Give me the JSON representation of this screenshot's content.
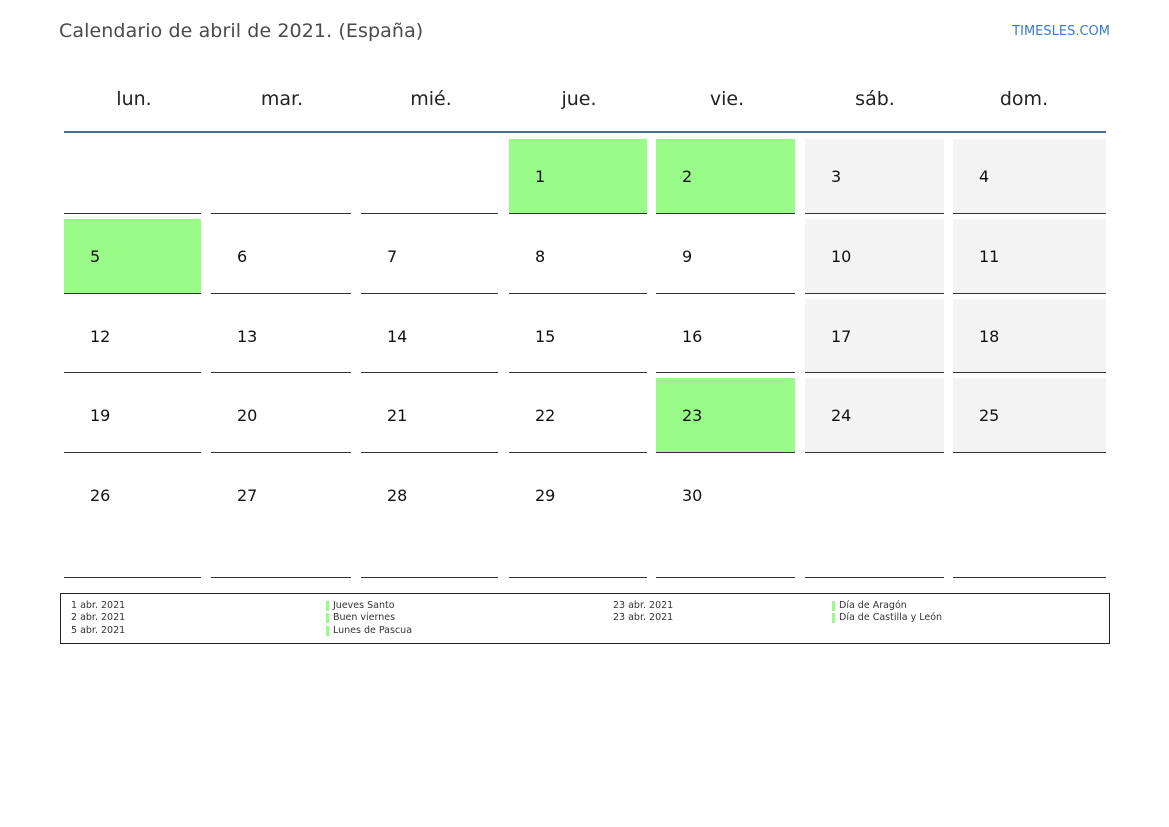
{
  "header": {
    "title": "Calendario de abril de 2021. (España)",
    "site": "TIMESLES.COM"
  },
  "calendar": {
    "weekdays": [
      "lun.",
      "mar.",
      "mié.",
      "jue.",
      "vie.",
      "sáb.",
      "dom."
    ],
    "weeks": [
      [
        "",
        "",
        "",
        "1",
        "2",
        "3",
        "4"
      ],
      [
        "5",
        "6",
        "7",
        "8",
        "9",
        "10",
        "11"
      ],
      [
        "12",
        "13",
        "14",
        "15",
        "16",
        "17",
        "18"
      ],
      [
        "19",
        "20",
        "21",
        "22",
        "23",
        "24",
        "25"
      ],
      [
        "26",
        "27",
        "28",
        "29",
        "30",
        "",
        ""
      ]
    ],
    "holiday_days": [
      "1",
      "2",
      "5",
      "23"
    ]
  },
  "legend": {
    "left": [
      {
        "date": "1 abr. 2021",
        "name": "Jueves Santo"
      },
      {
        "date": "2 abr. 2021",
        "name": "Buen viernes"
      },
      {
        "date": "5 abr. 2021",
        "name": "Lunes de Pascua"
      }
    ],
    "right": [
      {
        "date": "23 abr. 2021",
        "name": "Día de Aragón"
      },
      {
        "date": "23 abr. 2021",
        "name": "Día de Castilla y León"
      }
    ]
  },
  "colors": {
    "holiday": "#99fb88",
    "weekend": "#f4f4f4",
    "header_rule": "#4a6a94",
    "link": "#3a7bc8"
  }
}
